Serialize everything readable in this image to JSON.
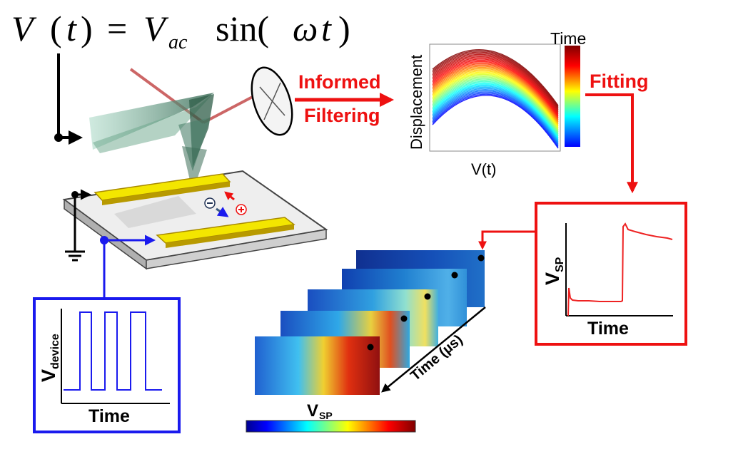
{
  "equation": {
    "lhs_v": "V",
    "lhs_paren": "(",
    "lhs_t": "t",
    "lhs_close": ")",
    "equals": "=",
    "rhs_v": "V",
    "rhs_sub": "ac",
    "func": "sin(",
    "omega": "ω",
    "t2": "t",
    "close": ")"
  },
  "labels": {
    "informed": "Informed",
    "filtering": "Filtering",
    "fitting": "Fitting",
    "displacement": "Displacement",
    "vt": "V(t)",
    "time_colorbar": "Time",
    "time_us": "Time (µs)",
    "vsp_main": "V",
    "vsp_sub": "SP",
    "vsp_axis_main": "V",
    "vsp_axis_sub": "SP",
    "vsp_time": "Time",
    "vdevice_main": "V",
    "vdevice_sub": "device",
    "vdevice_time": "Time"
  },
  "colors": {
    "red": "#ee1111",
    "blue": "#1a1aee",
    "black": "#000000",
    "gold": "#e6c800",
    "gold_edge": "#a88a00"
  },
  "icons": {
    "ground": "ground-icon",
    "minus_charge": "minus-charge-icon",
    "plus_charge": "plus-charge-icon",
    "detector": "photodetector-icon"
  }
}
